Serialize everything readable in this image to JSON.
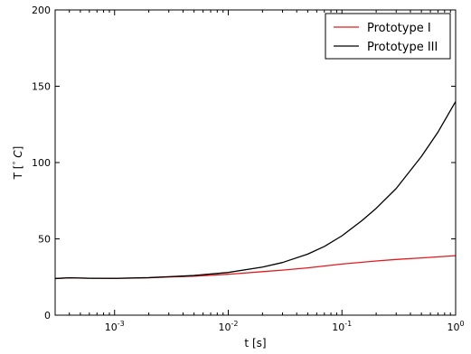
{
  "chart_data": {
    "type": "line",
    "title": "",
    "xlabel": "t [s]",
    "ylabel_main": "T [",
    "ylabel_degree": "°",
    "ylabel_unit": " C",
    "ylabel_close": "]",
    "xscale": "log",
    "xlim": [
      0.0003,
      1
    ],
    "ylim": [
      0,
      200
    ],
    "grid": false,
    "legend_position": "top-right",
    "x_ticks": [
      {
        "value": 0.001,
        "base": "10",
        "exp": "-3"
      },
      {
        "value": 0.01,
        "base": "10",
        "exp": "-2"
      },
      {
        "value": 0.1,
        "base": "10",
        "exp": "-1"
      },
      {
        "value": 1,
        "base": "10",
        "exp": "0"
      }
    ],
    "y_ticks": [
      {
        "value": 0,
        "label": "0"
      },
      {
        "value": 50,
        "label": "50"
      },
      {
        "value": 100,
        "label": "100"
      },
      {
        "value": 150,
        "label": "150"
      },
      {
        "value": 200,
        "label": "200"
      }
    ],
    "series": [
      {
        "name": "Prototype I",
        "color": "#e41a1c",
        "x": [
          0.0003,
          0.0004,
          0.0006,
          0.001,
          0.002,
          0.003,
          0.005,
          0.01,
          0.02,
          0.03,
          0.05,
          0.1,
          0.2,
          0.3,
          0.5,
          1
        ],
        "y": [
          24,
          24.5,
          24.2,
          24.1,
          24.5,
          25,
          25.5,
          26.8,
          28.5,
          29.5,
          31,
          33.5,
          35.5,
          36.5,
          37.5,
          39
        ]
      },
      {
        "name": "Prototype III",
        "color": "#000000",
        "x": [
          0.0003,
          0.0004,
          0.0006,
          0.001,
          0.002,
          0.003,
          0.005,
          0.01,
          0.02,
          0.03,
          0.05,
          0.07,
          0.1,
          0.15,
          0.2,
          0.3,
          0.5,
          0.7,
          1
        ],
        "y": [
          24,
          24.5,
          24.2,
          24.1,
          24.6,
          25.2,
          26,
          28,
          31.5,
          34.5,
          40,
          45,
          52,
          62,
          70,
          83,
          104,
          120,
          140
        ]
      }
    ]
  }
}
